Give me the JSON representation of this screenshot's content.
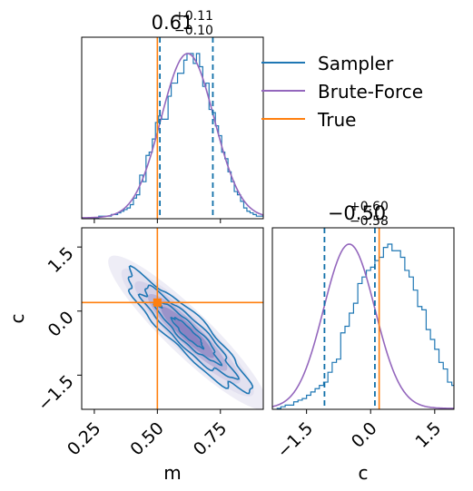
{
  "chart_data": {
    "type": "corner",
    "parameters": [
      {
        "name": "m",
        "range": [
          0.2,
          0.92
        ],
        "ticks": [
          0.25,
          0.5,
          0.75
        ],
        "tick_labels": [
          "0.25",
          "0.50",
          "0.75"
        ],
        "axis_label": "m"
      },
      {
        "name": "c",
        "range": [
          -2.3,
          1.95
        ],
        "ticks": [
          -1.5,
          0.0,
          1.5
        ],
        "tick_labels": [
          "−1.5",
          "0.0",
          "1.5"
        ],
        "axis_label": "c"
      }
    ],
    "titles": [
      {
        "value": "0.61",
        "plus": "+0.11",
        "minus": "−0.10"
      },
      {
        "value": "−0.50",
        "plus": "+0.60",
        "minus": "−0.58"
      }
    ],
    "truth": {
      "m": 0.5,
      "c": 0.2
    },
    "quantiles": {
      "m": [
        0.51,
        0.72
      ],
      "c": [
        -1.08,
        0.1
      ]
    },
    "series": [
      {
        "name": "Sampler",
        "color": "#1f77b4"
      },
      {
        "name": "Brute-Force",
        "color": "#9467bd"
      },
      {
        "name": "True",
        "color": "#ff7f0e"
      }
    ],
    "marginal_m": {
      "bin_start": 0.23,
      "bin_width": 0.0125,
      "sampler_counts": [
        0,
        0,
        0,
        1,
        1,
        1,
        1,
        2,
        2,
        3,
        4,
        5,
        6,
        8,
        12,
        14,
        26,
        22,
        38,
        40,
        48,
        58,
        62,
        60,
        60,
        74,
        82,
        82,
        88,
        88,
        96,
        100,
        100,
        94,
        100,
        92,
        80,
        82,
        66,
        64,
        56,
        50,
        40,
        36,
        28,
        22,
        16,
        14,
        10,
        6,
        4,
        3,
        2,
        1,
        1,
        1,
        0
      ],
      "brute_force_mean": 0.62,
      "brute_force_sd": 0.105
    },
    "marginal_c": {
      "bin_start": -2.2,
      "bin_width": 0.1,
      "sampler_counts": [
        0,
        1,
        2,
        2,
        4,
        5,
        6,
        8,
        10,
        12,
        14,
        16,
        22,
        28,
        30,
        46,
        50,
        58,
        64,
        76,
        80,
        84,
        86,
        90,
        92,
        98,
        100,
        96,
        96,
        92,
        84,
        80,
        72,
        62,
        60,
        48,
        42,
        36,
        28,
        24,
        16,
        14,
        10,
        8,
        6,
        2,
        1,
        1,
        0
      ],
      "brute_force_mean": -0.5,
      "brute_force_sd": 0.6
    },
    "joint": {
      "mean": [
        0.62,
        -0.5
      ],
      "sd": [
        0.105,
        0.6
      ],
      "correlation": -0.92,
      "sampler_contours_sigma": [
        0.5,
        1.0,
        1.5,
        2.0
      ]
    }
  }
}
